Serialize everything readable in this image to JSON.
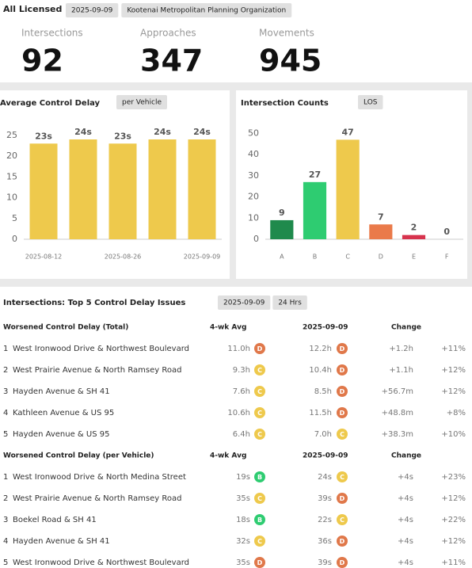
{
  "header": {
    "scope": "All Licensed",
    "date": "2025-09-09",
    "organization": "Kootenai Metropolitan Planning Organization"
  },
  "kpis": [
    {
      "label": "Intersections",
      "value": 92
    },
    {
      "label": "Approaches",
      "value": 347
    },
    {
      "label": "Movements",
      "value": 945
    }
  ],
  "chart_data": [
    {
      "type": "bar",
      "title": "Average Control Delay",
      "filter": "per Vehicle",
      "categories": [
        "2025-08-12",
        null,
        "2025-08-26",
        null,
        "2025-09-09"
      ],
      "values": [
        23,
        24,
        23,
        24,
        24
      ],
      "value_labels": [
        "23s",
        "24s",
        "23s",
        "24s",
        "24s"
      ],
      "color": "#eec94c",
      "ylim": [
        0,
        28
      ],
      "yticks": [
        0,
        5,
        10,
        15,
        20,
        25
      ],
      "grid": false
    },
    {
      "type": "bar",
      "title": "Intersection Counts",
      "filter": "LOS",
      "categories": [
        "A",
        "B",
        "C",
        "D",
        "E",
        "F"
      ],
      "values": [
        9,
        27,
        47,
        7,
        2,
        0
      ],
      "colors": [
        "#1f8a4c",
        "#2ecc71",
        "#eec94c",
        "#ea7a4a",
        "#d7334d",
        "#999999"
      ],
      "ylim": [
        0,
        55
      ],
      "yticks": [
        0,
        10,
        20,
        30,
        40,
        50
      ],
      "grid": false
    }
  ],
  "issues": {
    "title": "Intersections: Top 5 Control Delay Issues",
    "date": "2025-09-09",
    "period": "24 Hrs",
    "los_colors": {
      "A": "#1f8a4c",
      "B": "#2ecc71",
      "C": "#eec94c",
      "D": "#e0784a",
      "E": "#d7334d",
      "F": "#999999"
    },
    "tables": [
      {
        "heading": "Worsened Control Delay (Total)",
        "col_avg": "4-wk Avg",
        "col_date": "2025-09-09",
        "col_change": "Change",
        "rows": [
          {
            "rank": "1",
            "name": "West Ironwood Drive & Northwest Boulevard",
            "avg": "11.0h",
            "avg_los": "D",
            "cur": "12.2h",
            "cur_los": "D",
            "change": "+1.2h",
            "pct": "+11%"
          },
          {
            "rank": "2",
            "name": "West Prairie Avenue & North Ramsey Road",
            "avg": "9.3h",
            "avg_los": "C",
            "cur": "10.4h",
            "cur_los": "D",
            "change": "+1.1h",
            "pct": "+12%"
          },
          {
            "rank": "3",
            "name": "Hayden Avenue & SH 41",
            "avg": "7.6h",
            "avg_los": "C",
            "cur": "8.5h",
            "cur_los": "D",
            "change": "+56.7m",
            "pct": "+12%"
          },
          {
            "rank": "4",
            "name": "Kathleen Avenue & US 95",
            "avg": "10.6h",
            "avg_los": "C",
            "cur": "11.5h",
            "cur_los": "D",
            "change": "+48.8m",
            "pct": "+8%"
          },
          {
            "rank": "5",
            "name": "Hayden Avenue & US 95",
            "avg": "6.4h",
            "avg_los": "C",
            "cur": "7.0h",
            "cur_los": "C",
            "change": "+38.3m",
            "pct": "+10%"
          }
        ]
      },
      {
        "heading": "Worsened Control Delay (per Vehicle)",
        "col_avg": "4-wk Avg",
        "col_date": "2025-09-09",
        "col_change": "Change",
        "rows": [
          {
            "rank": "1",
            "name": "West Ironwood Drive & North Medina Street",
            "avg": "19s",
            "avg_los": "B",
            "cur": "24s",
            "cur_los": "C",
            "change": "+4s",
            "pct": "+23%"
          },
          {
            "rank": "2",
            "name": "West Prairie Avenue & North Ramsey Road",
            "avg": "35s",
            "avg_los": "C",
            "cur": "39s",
            "cur_los": "D",
            "change": "+4s",
            "pct": "+12%"
          },
          {
            "rank": "3",
            "name": "Boekel Road & SH 41",
            "avg": "18s",
            "avg_los": "B",
            "cur": "22s",
            "cur_los": "C",
            "change": "+4s",
            "pct": "+22%"
          },
          {
            "rank": "4",
            "name": "Hayden Avenue & SH 41",
            "avg": "32s",
            "avg_los": "C",
            "cur": "36s",
            "cur_los": "D",
            "change": "+4s",
            "pct": "+12%"
          },
          {
            "rank": "5",
            "name": "West Ironwood Drive & Northwest Boulevard",
            "avg": "35s",
            "avg_los": "D",
            "cur": "39s",
            "cur_los": "D",
            "change": "+4s",
            "pct": "+11%"
          }
        ]
      }
    ]
  }
}
